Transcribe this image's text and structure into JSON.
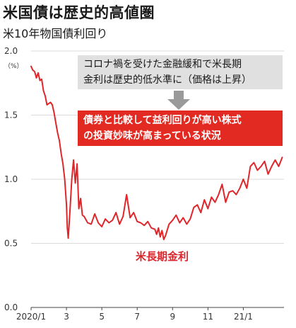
{
  "header": {
    "title": "米国債は歴史的高値圏",
    "subtitle": "米10年物国債利回り"
  },
  "callouts": {
    "gray_lines": [
      "コロナ禍を受けた金融緩和で米長期",
      "金利は歴史的低水準に（価格は上昇）"
    ],
    "red_lines": [
      "債券と比較して益利回りが高い株式",
      "の投資妙味が高まっている状況"
    ]
  },
  "colors": {
    "line": "#e0262a",
    "label": "#d9262b",
    "callout_red": "#e32a22",
    "callout_gray": "#e0e0e0",
    "arrow": "#9a9a9a",
    "grid": "#cfcfcf"
  },
  "chart_data": {
    "type": "line",
    "unit_label": "（%）",
    "series_label": "米長期金利",
    "ylim": [
      0.0,
      2.0
    ],
    "yticks": [
      "0.0",
      "0.5",
      "1.0",
      "1.5",
      "2.0"
    ],
    "xlim": [
      0,
      14.3
    ],
    "xticks": [
      {
        "x": 0,
        "label": "2020/1"
      },
      {
        "x": 2,
        "label": "3"
      },
      {
        "x": 4,
        "label": "5"
      },
      {
        "x": 6,
        "label": "7"
      },
      {
        "x": 8,
        "label": "9"
      },
      {
        "x": 10,
        "label": "11"
      },
      {
        "x": 12,
        "label": "21/1"
      }
    ],
    "grid": true,
    "series": [
      {
        "x": [
          0,
          0.1,
          0.2,
          0.3,
          0.4,
          0.5,
          0.6,
          0.7,
          0.8,
          0.9,
          1.0,
          1.1,
          1.2,
          1.3,
          1.4,
          1.5,
          1.6,
          1.7,
          1.8,
          1.9,
          2.0,
          2.05,
          2.1,
          2.2,
          2.3,
          2.4,
          2.5,
          2.6,
          2.7,
          2.8,
          2.9,
          3.0,
          3.2,
          3.4,
          3.6,
          3.8,
          4.0,
          4.2,
          4.4,
          4.6,
          4.8,
          5.0,
          5.2,
          5.4,
          5.6,
          5.8,
          6.0,
          6.2,
          6.4,
          6.6,
          6.8,
          7.0,
          7.1,
          7.2,
          7.3,
          7.4,
          7.5,
          7.6,
          7.8,
          8.0,
          8.2,
          8.4,
          8.6,
          8.8,
          9.0,
          9.2,
          9.4,
          9.6,
          9.8,
          10.0,
          10.2,
          10.4,
          10.6,
          10.8,
          11.0,
          11.2,
          11.4,
          11.6,
          11.8,
          12.0,
          12.2,
          12.4,
          12.6,
          12.8,
          13.0,
          13.2,
          13.4,
          13.6,
          13.8,
          14.0,
          14.2
        ],
        "y": [
          1.88,
          1.85,
          1.84,
          1.79,
          1.83,
          1.77,
          1.78,
          1.69,
          1.65,
          1.58,
          1.59,
          1.6,
          1.58,
          1.52,
          1.44,
          1.36,
          1.3,
          1.2,
          1.12,
          1.0,
          0.8,
          0.62,
          0.54,
          0.76,
          1.0,
          1.15,
          0.97,
          1.12,
          0.77,
          0.85,
          0.72,
          0.71,
          0.66,
          0.65,
          0.73,
          0.66,
          0.63,
          0.69,
          0.66,
          0.68,
          0.74,
          0.65,
          0.71,
          0.88,
          0.7,
          0.74,
          0.67,
          0.66,
          0.64,
          0.67,
          0.62,
          0.61,
          0.57,
          0.62,
          0.55,
          0.6,
          0.53,
          0.56,
          0.65,
          0.68,
          0.72,
          0.66,
          0.7,
          0.65,
          0.69,
          0.78,
          0.8,
          0.74,
          0.84,
          0.77,
          0.86,
          0.82,
          0.88,
          0.96,
          0.82,
          0.9,
          0.91,
          0.88,
          0.93,
          1.0,
          0.93,
          1.1,
          1.13,
          1.07,
          1.1,
          1.14,
          1.04,
          1.1,
          1.15,
          1.1,
          1.17
        ]
      }
    ]
  }
}
